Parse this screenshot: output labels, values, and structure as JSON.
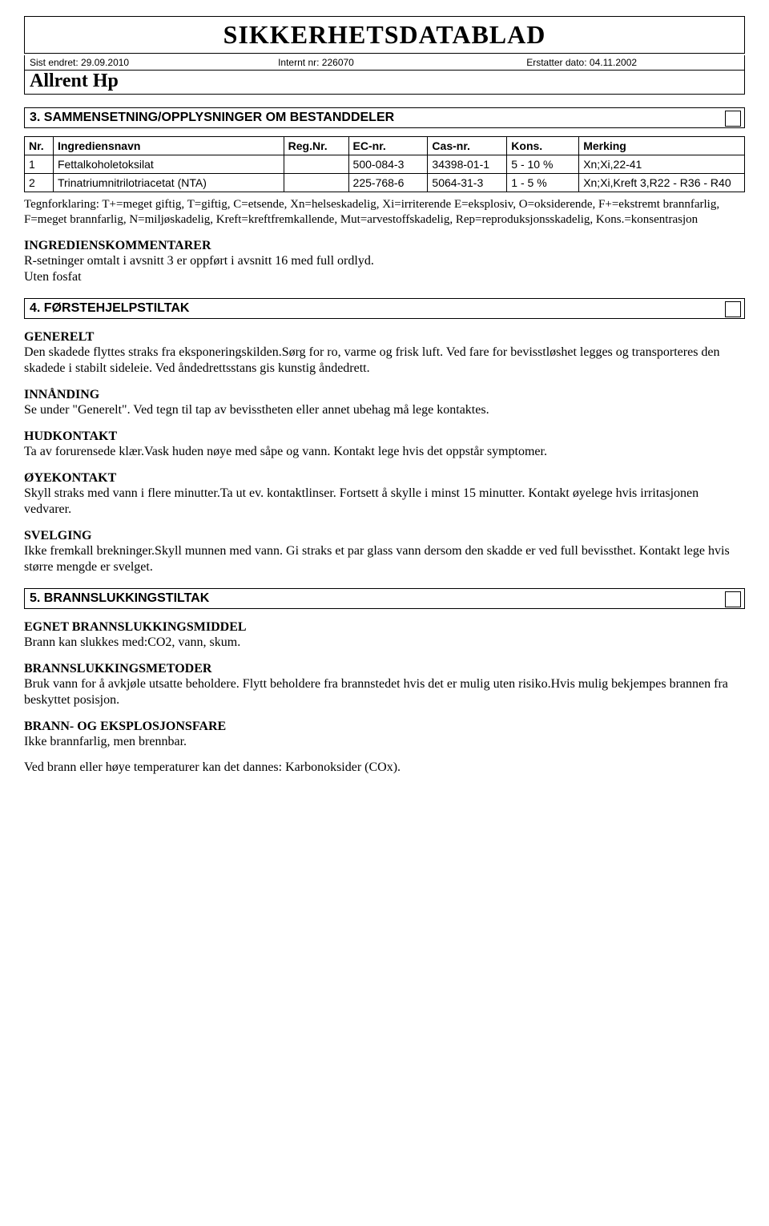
{
  "header": {
    "title": "SIKKERHETSDATABLAD",
    "meta": {
      "last_changed_label": "Sist endret:",
      "last_changed": "29.09.2010",
      "internal_label": "Internt nr:",
      "internal": "226070",
      "replaces_label": "Erstatter dato:",
      "replaces": "04.11.2002"
    },
    "product": "Allrent Hp"
  },
  "section3": {
    "title": "3. SAMMENSETNING/OPPLYSNINGER OM BESTANDDELER",
    "columns": [
      "Nr.",
      "Ingrediensnavn",
      "Reg.Nr.",
      "EC-nr.",
      "Cas-nr.",
      "Kons.",
      "Merking"
    ],
    "rows": [
      {
        "nr": "1",
        "name": "Fettalkoholetoksilat",
        "reg": "",
        "ec": "500-084-3",
        "cas": "34398-01-1",
        "kons": "5 - 10 %",
        "merk": "Xn;Xi,22-41"
      },
      {
        "nr": "2",
        "name": "Trinatriumnitrilotriacetat (NTA)",
        "reg": "",
        "ec": "225-768-6",
        "cas": "5064-31-3",
        "kons": "1 - 5 %",
        "merk": "Xn;Xi,Kreft 3,R22 - R36 - R40"
      }
    ],
    "legend": "Tegnforklaring: T+=meget giftig, T=giftig, C=etsende, Xn=helseskadelig, Xi=irriterende E=eksplosiv, O=oksiderende, F+=ekstremt brannfarlig, F=meget brannfarlig, N=miljøskadelig, Kreft=kreftfremkallende, Mut=arvestoffskadelig, Rep=reproduksjonsskadelig, Kons.=konsentrasjon",
    "comments_head": "INGREDIENSKOMMENTARER",
    "comments_l1": "R-setninger omtalt i avsnitt 3 er oppført i avsnitt 16 med full ordlyd.",
    "comments_l2": "Uten fosfat"
  },
  "section4": {
    "title": "4. FØRSTEHJELPSTILTAK",
    "generelt_head": "GENERELT",
    "generelt": "Den skadede flyttes straks fra eksponeringskilden.Sørg for ro, varme og frisk luft. Ved fare for bevisstløshet legges og transporteres den skadede i stabilt sideleie. Ved åndedrettsstans gis kunstig åndedrett.",
    "innanding_head": "INNÅNDING",
    "innanding": "Se under \"Generelt\". Ved tegn til tap av bevisstheten eller annet ubehag må lege kontaktes.",
    "hud_head": "HUDKONTAKT",
    "hud": "Ta av forurensede klær.Vask huden nøye med såpe og vann. Kontakt lege hvis det oppstår symptomer.",
    "oye_head": "ØYEKONTAKT",
    "oye": "Skyll straks med vann i flere minutter.Ta ut ev. kontaktlinser. Fortsett å skylle i minst 15 minutter. Kontakt øyelege hvis irritasjonen vedvarer.",
    "svelg_head": "SVELGING",
    "svelg": "Ikke fremkall brekninger.Skyll munnen med vann. Gi straks et par glass vann dersom den skadde er ved full bevissthet. Kontakt lege hvis større mengde er svelget."
  },
  "section5": {
    "title": "5. BRANNSLUKKINGSTILTAK",
    "egnet_head": "EGNET BRANNSLUKKINGSMIDDEL",
    "egnet": "Brann kan slukkes med:CO2, vann, skum.",
    "metoder_head": "BRANNSLUKKINGSMETODER",
    "metoder": "Bruk vann for å avkjøle utsatte beholdere. Flytt beholdere fra brannstedet hvis det er mulig uten risiko.Hvis mulig bekjempes brannen fra beskyttet posisjon.",
    "fare_head": "BRANN- OG EKSPLOSJONSFARE",
    "fare": "Ikke brannfarlig, men brennbar.",
    "fare2": "Ved brann eller høye temperaturer kan det dannes: Karbonoksider (COx)."
  }
}
